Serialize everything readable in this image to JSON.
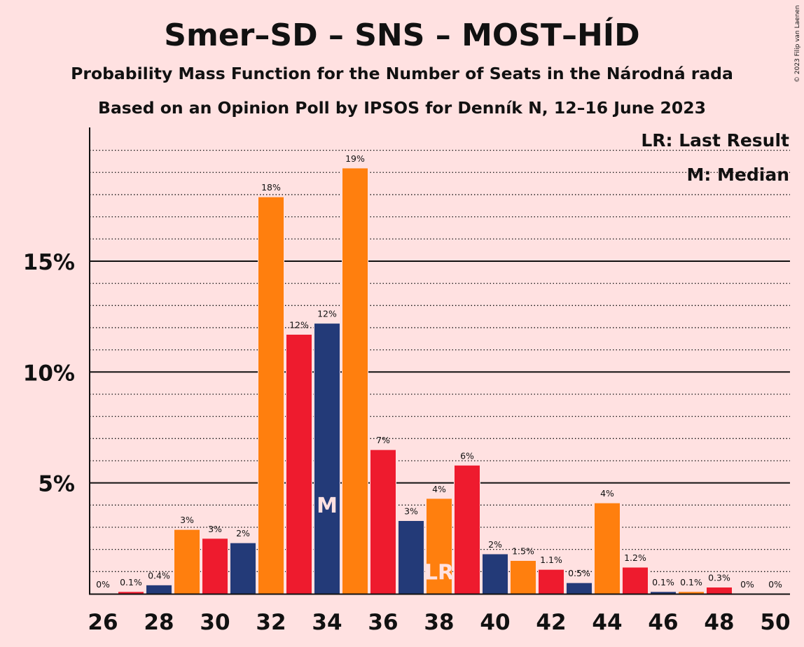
{
  "chart_data": {
    "type": "bar",
    "title": "Smer–SD – SNS – MOST–HÍD",
    "subtitle": "Probability Mass Function for the Number of Seats in the Národná rada",
    "subtitle2": "Based on an Opinion Poll by IPSOS for Denník N, 12–16 June 2023",
    "copyright": "© 2023 Filip van Laenen",
    "xlabel": "",
    "ylabel": "",
    "x": [
      26,
      27,
      28,
      29,
      30,
      31,
      32,
      33,
      34,
      35,
      36,
      37,
      38,
      39,
      40,
      41,
      42,
      43,
      44,
      45,
      46,
      47,
      48,
      49,
      50
    ],
    "values": [
      0,
      0.1,
      0.4,
      2.9,
      2.5,
      2.3,
      17.9,
      11.7,
      12.2,
      19.2,
      6.5,
      3.3,
      4.3,
      5.8,
      1.8,
      1.5,
      1.1,
      0.5,
      4.1,
      1.2,
      0.1,
      0.1,
      0.3,
      0,
      0
    ],
    "value_labels": [
      "0%",
      "0.1%",
      "0.4%",
      "3%",
      "3%",
      "2%",
      "18%",
      "12%",
      "12%",
      "19%",
      "7%",
      "3%",
      "4%",
      "6%",
      "2%",
      "1.5%",
      "1.1%",
      "0.5%",
      "4%",
      "1.2%",
      "0.1%",
      "0.1%",
      "0.3%",
      "0%",
      "0%"
    ],
    "x_tick_labels": [
      "26",
      "28",
      "30",
      "32",
      "34",
      "36",
      "38",
      "40",
      "42",
      "44",
      "46",
      "48",
      "50"
    ],
    "y_ticks": [
      5,
      10,
      15
    ],
    "y_tick_labels": [
      "5%",
      "10%",
      "15%"
    ],
    "ylim": [
      0,
      21
    ],
    "median_seat": 34,
    "median_marker": "M",
    "last_result_seat": 38,
    "last_result_marker": "LR",
    "legend": {
      "last_result": "LR: Last Result",
      "median": "M: Median",
      "placement": "top-right"
    },
    "grid": {
      "major": true,
      "minor_dotted": true,
      "minor_step": 1
    },
    "colors": {
      "background": "#FFE1E1",
      "series": [
        "#EE1B2E",
        "#233A78",
        "#FF7F0E"
      ],
      "text": "#111111"
    }
  }
}
